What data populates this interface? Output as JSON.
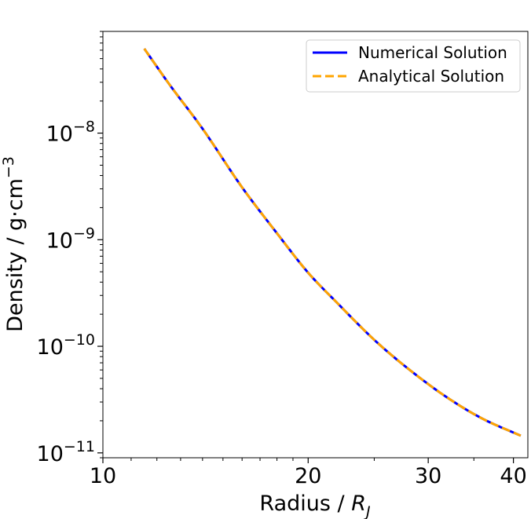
{
  "chart_data": {
    "type": "line",
    "xlabel": "Radius / ",
    "xlabel_symbol": "R",
    "xlabel_subscript": "J",
    "ylabel": "Density / g·cm",
    "ylabel_superscript": "−3",
    "xscale": "log",
    "yscale": "log",
    "xlim": [
      10,
      42
    ],
    "ylim": [
      9e-12,
      9e-08
    ],
    "xticks": [
      {
        "value": 10,
        "label": "10"
      },
      {
        "value": 20,
        "label": "20"
      },
      {
        "value": 30,
        "label": "30"
      },
      {
        "value": 40,
        "label": "40"
      }
    ],
    "yticks": [
      {
        "value": 1e-11,
        "base": "10",
        "exp": "−11"
      },
      {
        "value": 1e-10,
        "base": "10",
        "exp": "−10"
      },
      {
        "value": 1e-09,
        "base": "10",
        "exp": "−9"
      },
      {
        "value": 1e-08,
        "base": "10",
        "exp": "−8"
      }
    ],
    "legend_position": "upper-right",
    "series": [
      {
        "name": "Numerical Solution",
        "color": "#0000ff",
        "style": "solid",
        "x": [
          11.5,
          12.5,
          14,
          16,
          18,
          20,
          22,
          25,
          28,
          32,
          36,
          41
        ],
        "y": [
          6.2e-08,
          2.9e-08,
          1.1e-08,
          3.1e-09,
          1.15e-09,
          4.9e-10,
          2.6e-10,
          1.15e-10,
          6.2e-11,
          3.3e-11,
          2.1e-11,
          1.45e-11
        ]
      },
      {
        "name": "Analytical Solution",
        "color": "#ffa500",
        "style": "dashed",
        "x": [
          11.5,
          12.5,
          14,
          16,
          18,
          20,
          22,
          25,
          28,
          32,
          36,
          41
        ],
        "y": [
          6.2e-08,
          2.9e-08,
          1.1e-08,
          3.1e-09,
          1.15e-09,
          4.9e-10,
          2.6e-10,
          1.15e-10,
          6.2e-11,
          3.3e-11,
          2.1e-11,
          1.45e-11
        ]
      }
    ]
  }
}
